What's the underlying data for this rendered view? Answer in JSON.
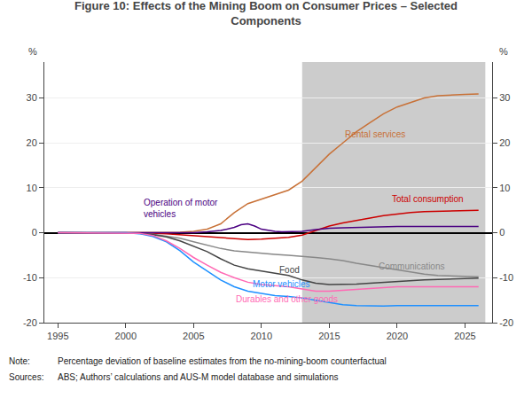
{
  "chart_data": {
    "type": "line",
    "title": "Figure 10: Effects of the Mining Boom on Consumer Prices – Selected\nComponents",
    "ylabel": "%",
    "y2label": "%",
    "xlim": [
      1994,
      2027
    ],
    "xticks": [
      1995,
      2000,
      2005,
      2010,
      2015,
      2020,
      2025
    ],
    "ylim": [
      -20,
      38
    ],
    "yticks": [
      -20,
      -10,
      0,
      10,
      20,
      30
    ],
    "y2lim": [
      -20,
      38
    ],
    "y2ticks": [
      -20,
      -10,
      0,
      10,
      20,
      30
    ],
    "grid": "y",
    "shaded_region": {
      "x": [
        2013,
        2026.5
      ],
      "color": "#cccccc"
    },
    "series": [
      {
        "name": "Rental services",
        "color": "#c87137",
        "x": [
          1995,
          1996,
          1997,
          1998,
          1999,
          2000,
          2001,
          2002,
          2003,
          2004,
          2005,
          2006,
          2007,
          2008,
          2009,
          2010,
          2011,
          2012,
          2013,
          2014,
          2015,
          2016,
          2017,
          2018,
          2019,
          2020,
          2021,
          2022,
          2023,
          2024,
          2025,
          2026
        ],
        "values": [
          0.0,
          0.0,
          0.0,
          0.0,
          0.0,
          0.0,
          0.0,
          0.0,
          0.0,
          0.1,
          0.3,
          0.8,
          2.0,
          4.5,
          6.5,
          7.5,
          8.5,
          9.5,
          11.5,
          14.5,
          17.5,
          20.0,
          22.5,
          24.5,
          26.5,
          28.0,
          29.0,
          30.0,
          30.5,
          30.7,
          30.8,
          30.9
        ]
      },
      {
        "name": "Total consumption",
        "color": "#cc0000",
        "x": [
          1995,
          1996,
          1997,
          1998,
          1999,
          2000,
          2001,
          2002,
          2003,
          2004,
          2005,
          2006,
          2007,
          2008,
          2009,
          2010,
          2011,
          2012,
          2013,
          2014,
          2015,
          2016,
          2017,
          2018,
          2019,
          2020,
          2021,
          2022,
          2023,
          2024,
          2025,
          2026
        ],
        "values": [
          0.0,
          0.0,
          0.0,
          0.0,
          0.0,
          0.0,
          0.0,
          -0.1,
          -0.2,
          -0.4,
          -0.6,
          -0.8,
          -1.0,
          -1.3,
          -1.5,
          -1.4,
          -1.2,
          -1.0,
          -0.5,
          0.5,
          1.5,
          2.2,
          2.8,
          3.3,
          3.8,
          4.2,
          4.5,
          4.7,
          4.8,
          4.9,
          5.0,
          5.0
        ]
      },
      {
        "name": "Communications",
        "color": "#888888",
        "x": [
          1995,
          1996,
          1997,
          1998,
          1999,
          2000,
          2001,
          2002,
          2003,
          2004,
          2005,
          2006,
          2007,
          2008,
          2009,
          2010,
          2011,
          2012,
          2013,
          2014,
          2015,
          2016,
          2017,
          2018,
          2019,
          2020,
          2021,
          2022,
          2023,
          2024,
          2025,
          2026
        ],
        "values": [
          0.0,
          0.0,
          0.0,
          0.0,
          0.0,
          0.0,
          -0.1,
          -0.3,
          -0.7,
          -1.2,
          -2.0,
          -2.8,
          -3.5,
          -4.0,
          -4.3,
          -4.5,
          -4.8,
          -5.0,
          -5.2,
          -5.5,
          -5.8,
          -6.2,
          -6.8,
          -7.3,
          -7.8,
          -8.3,
          -8.8,
          -9.2,
          -9.5,
          -9.6,
          -9.7,
          -9.8
        ]
      },
      {
        "name": "Food",
        "color": "#444444",
        "x": [
          1995,
          1996,
          1997,
          1998,
          1999,
          2000,
          2001,
          2002,
          2003,
          2004,
          2005,
          2006,
          2007,
          2008,
          2009,
          2010,
          2011,
          2012,
          2013,
          2014,
          2015,
          2016,
          2017,
          2018,
          2019,
          2020,
          2021,
          2022,
          2023,
          2024,
          2025,
          2026
        ],
        "values": [
          0.0,
          0.0,
          0.0,
          0.0,
          0.0,
          0.0,
          -0.1,
          -0.4,
          -0.9,
          -1.8,
          -3.0,
          -4.2,
          -5.8,
          -7.2,
          -8.0,
          -8.5,
          -9.0,
          -9.5,
          -10.5,
          -11.2,
          -11.5,
          -11.5,
          -11.4,
          -11.2,
          -11.0,
          -10.8,
          -10.6,
          -10.5,
          -10.4,
          -10.3,
          -10.2,
          -10.1
        ]
      },
      {
        "name": "Operation of motor\nvehicles",
        "color": "#4b0082",
        "x": [
          1995,
          1996,
          1997,
          1998,
          1999,
          2000,
          2001,
          2002,
          2003,
          2004,
          2005,
          2006,
          2007,
          2008,
          2008.5,
          2009,
          2009.5,
          2010,
          2010.5,
          2011,
          2011.5,
          2012,
          2013,
          2014,
          2015,
          2016,
          2017,
          2018,
          2019,
          2020,
          2021,
          2022,
          2023,
          2024,
          2025,
          2026
        ],
        "values": [
          0.0,
          0.0,
          0.0,
          0.0,
          0.0,
          0.0,
          0.0,
          -0.1,
          -0.1,
          -0.1,
          0.0,
          0.2,
          0.5,
          1.2,
          1.8,
          2.0,
          1.5,
          0.8,
          0.5,
          0.3,
          0.2,
          0.2,
          0.3,
          0.7,
          1.0,
          1.1,
          1.2,
          1.3,
          1.4,
          1.4,
          1.4,
          1.4,
          1.4,
          1.4,
          1.4,
          1.4
        ]
      },
      {
        "name": "Motor vehicles",
        "color": "#1e90ff",
        "x": [
          1995,
          1996,
          1997,
          1998,
          1999,
          2000,
          2001,
          2002,
          2003,
          2004,
          2005,
          2006,
          2007,
          2008,
          2009,
          2010,
          2011,
          2012,
          2013,
          2014,
          2015,
          2016,
          2017,
          2018,
          2019,
          2020,
          2021,
          2022,
          2023,
          2024,
          2025,
          2026
        ],
        "values": [
          0.0,
          0.0,
          0.0,
          0.0,
          0.0,
          0.0,
          -0.2,
          -0.8,
          -2.0,
          -4.0,
          -6.5,
          -8.5,
          -10.5,
          -12.0,
          -13.0,
          -13.5,
          -14.0,
          -14.2,
          -14.5,
          -15.0,
          -15.5,
          -16.0,
          -16.2,
          -16.3,
          -16.3,
          -16.2,
          -16.2,
          -16.2,
          -16.2,
          -16.2,
          -16.2,
          -16.2
        ]
      },
      {
        "name": "Durables and other goods",
        "color": "#ff69b4",
        "x": [
          1995,
          1996,
          1997,
          1998,
          1999,
          2000,
          2001,
          2002,
          2003,
          2004,
          2005,
          2006,
          2007,
          2008,
          2009,
          2010,
          2011,
          2012,
          2013,
          2014,
          2015,
          2016,
          2017,
          2018,
          2019,
          2020,
          2021,
          2022,
          2023,
          2024,
          2025,
          2026
        ],
        "values": [
          0.0,
          0.0,
          0.0,
          0.0,
          0.0,
          0.0,
          -0.1,
          -0.6,
          -1.8,
          -3.5,
          -5.5,
          -7.2,
          -8.8,
          -10.0,
          -11.0,
          -11.5,
          -11.8,
          -12.0,
          -12.5,
          -13.0,
          -13.0,
          -12.8,
          -12.5,
          -12.3,
          -12.1,
          -12.0,
          -12.0,
          -12.0,
          -12.0,
          -12.0,
          -12.0,
          -12.0
        ]
      }
    ],
    "annotations": [
      {
        "text": "Rental services",
        "x": 2016.0,
        "y": 22.0
      },
      {
        "text": "Total consumption",
        "x": 2019.5,
        "y": 7.5
      },
      {
        "text": "Communications",
        "x": 2018.5,
        "y": -7.5
      },
      {
        "text": "Food",
        "x": 2011.2,
        "y": -8.2
      },
      {
        "text": "Operation of motor\nvehicles",
        "x": 2001.2,
        "y": 5.5
      },
      {
        "text": "Motor vehicles",
        "x": 2009.2,
        "y": -11.5
      },
      {
        "text": "Durables and other goods",
        "x": 2008.0,
        "y": -14.8
      }
    ],
    "notes": [
      {
        "label": "Note:",
        "text": "Percentage deviation of baseline estimates from the no-mining-boom counterfactual"
      },
      {
        "label": "Sources:",
        "text": "ABS; Authors’ calculations and AUS-M model database and simulations"
      }
    ]
  }
}
